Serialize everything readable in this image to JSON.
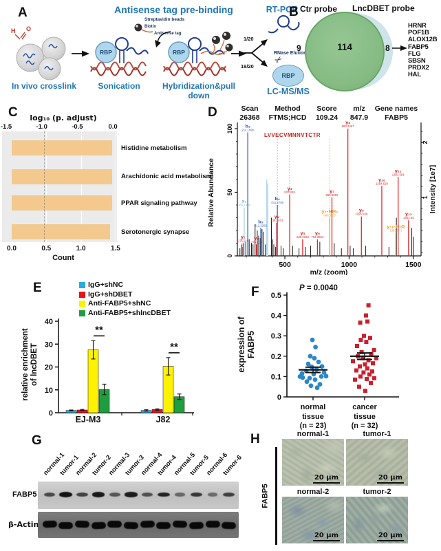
{
  "panels": {
    "A": "A",
    "B": "B",
    "C": "C",
    "D": "D",
    "E": "E",
    "F": "F",
    "G": "G",
    "H": "H"
  },
  "colors": {
    "panel_blue_text": "#2176b5",
    "annotation_navy": "#1a2f5e",
    "venn_green": "#8abf88",
    "venn_green_edge": "#66a766",
    "venn_blue": "#cfe3ea",
    "bar_orange": "#f3c98e",
    "plot_gray_bg": "#ebebeb",
    "ms_red": "#e12828",
    "ms_blue": "#3a66b0",
    "ms_lightblue": "#a8d2ee",
    "ms_orange": "#f0a12c",
    "legend_blue": "#29abe2",
    "legend_red": "#e8111c",
    "legend_yellow": "#fff200",
    "legend_green": "#1e9e3e",
    "scatter_blue": "#2b87c8",
    "scatter_red": "#cc1f2d"
  },
  "panelA": {
    "title": "Antisense tag pre-binding",
    "step1": "In vivo crosslink",
    "step2": "Sonication",
    "step3": "Hybridization&pull down",
    "bead1": "Streptavidin beads",
    "bead2": "Biotin",
    "bead3": "Antisense tag",
    "rbp": "RBP",
    "rbp2": "RBP",
    "rbp3": "RBP",
    "frac_top": "1/20",
    "frac_bottom": "19/20",
    "rtpcr": "RT-PCR",
    "rnase": "RNase Elution",
    "lcms": "LC-MS/MS",
    "form_h": "H",
    "form_o": "O"
  },
  "panelB": {
    "left_label": "Ctr probe",
    "right_label": "LncDBET probe",
    "left_count": "9",
    "middle_count": "114",
    "right_count": "8",
    "genes": [
      "HRNR",
      "POF1B",
      "ALOX12B",
      "FABP5",
      "FLG",
      "SBSN",
      "PRDX2",
      "HAL"
    ]
  },
  "panelD": {
    "header": [
      {
        "k": "Scan",
        "v": "26368"
      },
      {
        "k": "Method",
        "v": "FTMS;HCD"
      },
      {
        "k": "Score",
        "v": "109.24"
      },
      {
        "k": "m/z",
        "v": "847.9"
      },
      {
        "k": "Gene names",
        "v": "FABP5"
      }
    ],
    "peptide": "LVVECVMNNVTCTR"
  },
  "panelG": {
    "row1": "FABP5",
    "row2": "β-Actin",
    "lanes": [
      {
        "label": "normal-1",
        "fabp5": 0.55
      },
      {
        "label": "tumor-1",
        "fabp5": 0.95
      },
      {
        "label": "normal-2",
        "fabp5": 0.6
      },
      {
        "label": "tumor-2",
        "fabp5": 0.9
      },
      {
        "label": "normal-3",
        "fabp5": 0.45
      },
      {
        "label": "tumor-3",
        "fabp5": 0.88
      },
      {
        "label": "normal-4",
        "fabp5": 0.5
      },
      {
        "label": "tumor-4",
        "fabp5": 0.82
      },
      {
        "label": "normal-5",
        "fabp5": 0.32
      },
      {
        "label": "tumor-5",
        "fabp5": 0.68
      },
      {
        "label": "normal-6",
        "fabp5": 0.3
      },
      {
        "label": "tumor-6",
        "fabp5": 0.62
      }
    ]
  },
  "panelH": {
    "side_label": "FABP5",
    "scale_label": "20 μm",
    "tiles": [
      {
        "title": "normal-1"
      },
      {
        "title": "tumor-1"
      },
      {
        "title": "normal-2"
      },
      {
        "title": "tumor-2"
      }
    ]
  },
  "chart_data": [
    {
      "id": "venn",
      "type": "venn",
      "sets": [
        "Ctr probe",
        "LncDBET probe"
      ],
      "only_ctr": 9,
      "overlap": 114,
      "only_lncdbet": 8,
      "lncdbet_genes": [
        "HRNR",
        "POF1B",
        "ALOX12B",
        "FABP5",
        "FLG",
        "SBSN",
        "PRDX2",
        "HAL"
      ]
    },
    {
      "id": "pathways",
      "type": "bar",
      "orientation": "horizontal",
      "categories": [
        "Histidine metabolism",
        "Arachidonic acid metabolism",
        "PPAR signaling pathway",
        "Serotonergic synapse"
      ],
      "values": [
        1.45,
        1.45,
        1.45,
        1.42
      ],
      "top_axis_label": "log₁₀ (p. adjust)",
      "top_ticks": [
        "-1.5",
        "-1.0",
        "-0.5",
        "0.0"
      ],
      "xlabel": "Count",
      "x_ticks": [
        "0.0",
        "0.5",
        "1.0",
        "1.5"
      ],
      "xlim": [
        0,
        1.5
      ],
      "ref_line_at_count": 0.47,
      "bar_color": "#f3c98e",
      "plot_bg": "#ebebeb"
    },
    {
      "id": "spectrum",
      "type": "ms2-spectrum",
      "xlabel": "m/z (zoom)",
      "ylabel": "Relative Abundance",
      "ylabel_right": "Intensity [1e7]",
      "xlim": [
        130,
        1560
      ],
      "x_ticks": [
        500,
        1000,
        1500
      ],
      "y_ticks": [
        "0",
        "50",
        "100"
      ],
      "right_ticks": [
        "1",
        "2"
      ],
      "peptide": "LVVECVMNNVTCTR",
      "peaks": [
        {
          "mz": 175.119,
          "rel": 10,
          "ion": "y₁",
          "val": "175.119",
          "series": "y"
        },
        {
          "mz": 183.1494,
          "rel": 38,
          "ion": "a₂",
          "val": "183.1494",
          "series": "a"
        },
        {
          "mz": 211.1598,
          "rel": 97,
          "ion": "b₂",
          "val": "211.1598",
          "series": "b"
        },
        {
          "mz": 278.166,
          "rel": 9,
          "ion": "y₂",
          "val": "278.166",
          "series": "y"
        },
        {
          "mz": 312.2282,
          "rel": 22,
          "ion": "b₃",
          "val": "312.2282",
          "series": "b"
        },
        {
          "mz": 436.1973,
          "rel": 26,
          "ion": "y₃",
          "val": "436.1973",
          "series": "y"
        },
        {
          "mz": 441.2708,
          "rel": 40,
          "ion": "b₄",
          "val": "441.2708",
          "series": "b"
        },
        {
          "mz": 537.245,
          "rel": 48,
          "ion": "y₄",
          "val": "537.245",
          "series": "y"
        },
        {
          "mz": 638.3134,
          "rel": 13,
          "ion": "y₅",
          "val": "638.3134",
          "series": "y"
        },
        {
          "mz": 753.3563,
          "rel": 13,
          "ion": "y₆",
          "val": "753.3563",
          "series": "y"
        },
        {
          "mz": 849.3727,
          "rel": 30,
          "ion": "y₇-NH₃",
          "val": "849.3727",
          "series": "mod"
        },
        {
          "mz": 866.3992,
          "rel": 46,
          "ion": "y₇",
          "val": "866.3992",
          "series": "y"
        },
        {
          "mz": 990.4397,
          "rel": 100,
          "ion": "y₈",
          "val": "990.4397",
          "series": "y"
        },
        {
          "mz": 1095.508,
          "rel": 31,
          "ion": "y₉",
          "val": "1095.508",
          "series": "y"
        },
        {
          "mz": 1254.529,
          "rel": 55,
          "ion": "y₁₀",
          "val": "1254.529",
          "series": "y"
        },
        {
          "mz": 1363.571,
          "rel": 18,
          "ion": "y₁₁-H₂O",
          "val": "1363.571",
          "series": "mod"
        },
        {
          "mz": 1381.581,
          "rel": 62,
          "ion": "y₁₁",
          "val": "1381.581",
          "series": "y"
        },
        {
          "mz": 1462.65,
          "rel": 28,
          "ion": "y₁₂",
          "val": "1462.65",
          "series": "y"
        }
      ],
      "noise": [
        [
          150,
          6
        ],
        [
          162,
          9
        ],
        [
          172,
          7
        ],
        [
          196,
          11
        ],
        [
          222,
          13
        ],
        [
          240,
          10
        ],
        [
          252,
          9
        ],
        [
          268,
          25
        ],
        [
          285,
          20
        ],
        [
          296,
          16
        ],
        [
          308,
          14
        ],
        [
          322,
          21
        ],
        [
          334,
          19
        ],
        [
          348,
          9
        ],
        [
          395,
          30
        ],
        [
          404,
          13
        ],
        [
          414,
          9
        ],
        [
          428,
          7
        ],
        [
          470,
          8
        ],
        [
          488,
          6
        ],
        [
          560,
          8
        ],
        [
          610,
          6
        ],
        [
          660,
          7
        ],
        [
          700,
          8
        ],
        [
          772,
          11
        ],
        [
          884,
          10
        ],
        [
          940,
          6
        ],
        [
          1008,
          8
        ],
        [
          1032,
          6
        ],
        [
          1128,
          8
        ],
        [
          1310,
          7
        ],
        [
          1368,
          30
        ],
        [
          1488,
          22
        ]
      ],
      "lightblue_lines": [
        [
          358,
          60
        ],
        [
          366,
          57
        ]
      ],
      "darkred": [
        [
          1502,
          15
        ]
      ],
      "guides_gray": [
        441,
        537
      ],
      "guides_orange": [
        849
      ]
    },
    {
      "id": "rip",
      "type": "bar",
      "categories": [
        "EJ-M3",
        "J82"
      ],
      "series": [
        {
          "name": "IgG+shNC",
          "color": "#29abe2",
          "values": [
            1.0,
            1.0
          ],
          "errors": [
            0.2,
            0.3
          ]
        },
        {
          "name": "IgG+shDBET",
          "color": "#e8111c",
          "values": [
            1.2,
            1.4
          ],
          "errors": [
            0.25,
            0.3
          ]
        },
        {
          "name": "Anti-FABP5+shNC",
          "color": "#fff200",
          "values": [
            27.5,
            20.3
          ],
          "errors": [
            4.0,
            3.8
          ]
        },
        {
          "name": "Anti-FABP5+shlncDBET",
          "color": "#1e9e3e",
          "values": [
            10.2,
            7.0
          ],
          "errors": [
            2.3,
            1.2
          ]
        }
      ],
      "ylabel_lines": [
        "relative enrichment",
        "of lncDBET"
      ],
      "ylim": [
        0,
        40
      ],
      "y_ticks": [
        0,
        10,
        20,
        30,
        40
      ],
      "significance": [
        {
          "category": "EJ-M3",
          "label": "**",
          "between": [
            "Anti-FABP5+shNC",
            "Anti-FABP5+shlncDBET"
          ]
        },
        {
          "category": "J82",
          "label": "**",
          "between": [
            "Anti-FABP5+shNC",
            "Anti-FABP5+shlncDBET"
          ]
        }
      ]
    },
    {
      "id": "expression",
      "type": "scatter",
      "p_label_symbol": "P",
      "p_label_rest": " = 0.0040",
      "ylabel_lines": [
        "expression of",
        "FABP5"
      ],
      "ylim": [
        0,
        0.5
      ],
      "y_ticks": [
        "0",
        "0.1",
        "0.2",
        "0.3",
        "0.4",
        "0.5"
      ],
      "groups": [
        {
          "name_lines": [
            "normal",
            "tissue",
            "(n = 23)"
          ],
          "marker": "circle",
          "color": "#2b87c8",
          "mean": 0.133,
          "sem": 0.013,
          "points": [
            [
              -0.75,
              0.095
            ],
            [
              0.3,
              0.045
            ],
            [
              -0.15,
              0.055
            ],
            [
              0.5,
              0.062
            ],
            [
              -0.95,
              0.1
            ],
            [
              0.95,
              0.102
            ],
            [
              -0.45,
              0.075
            ],
            [
              0.15,
              0.085
            ],
            [
              -0.25,
              0.092
            ],
            [
              0.6,
              0.1
            ],
            [
              -0.8,
              0.115
            ],
            [
              0.05,
              0.112
            ],
            [
              0.8,
              0.12
            ],
            [
              -0.5,
              0.128
            ],
            [
              0.25,
              0.135
            ],
            [
              -0.1,
              0.148
            ],
            [
              0.65,
              0.15
            ],
            [
              -0.35,
              0.162
            ],
            [
              0.4,
              0.172
            ],
            [
              0.1,
              0.19
            ],
            [
              -0.2,
              0.2
            ],
            [
              0.18,
              0.245
            ],
            [
              -0.05,
              0.28
            ]
          ]
        },
        {
          "name_lines": [
            "cancer",
            "tissue",
            "(n = 32)"
          ],
          "marker": "square",
          "color": "#cc1f2d",
          "mean": 0.2,
          "sem": 0.016,
          "points": [
            [
              0.05,
              0.03
            ],
            [
              -0.4,
              0.05
            ],
            [
              0.45,
              0.068
            ],
            [
              -0.7,
              0.085
            ],
            [
              0.15,
              0.088
            ],
            [
              0.7,
              0.092
            ],
            [
              -0.3,
              0.1
            ],
            [
              0.35,
              0.11
            ],
            [
              -0.08,
              0.12
            ],
            [
              0.55,
              0.125
            ],
            [
              -0.6,
              0.13
            ],
            [
              0.2,
              0.14
            ],
            [
              -0.35,
              0.15
            ],
            [
              0.02,
              0.16
            ],
            [
              0.6,
              0.165
            ],
            [
              -0.85,
              0.175
            ],
            [
              0.28,
              0.18
            ],
            [
              -0.15,
              0.19
            ],
            [
              0.85,
              0.19
            ],
            [
              -0.5,
              0.2
            ],
            [
              0.48,
              0.21
            ],
            [
              -0.22,
              0.22
            ],
            [
              0.68,
              0.23
            ],
            [
              -0.55,
              0.25
            ],
            [
              0.12,
              0.27
            ],
            [
              -0.28,
              0.28
            ],
            [
              0.4,
              0.29
            ],
            [
              -0.05,
              0.3
            ],
            [
              -0.32,
              0.365
            ],
            [
              0.2,
              0.37
            ],
            [
              0.1,
              0.4
            ],
            [
              0.28,
              0.45
            ]
          ]
        }
      ]
    }
  ]
}
